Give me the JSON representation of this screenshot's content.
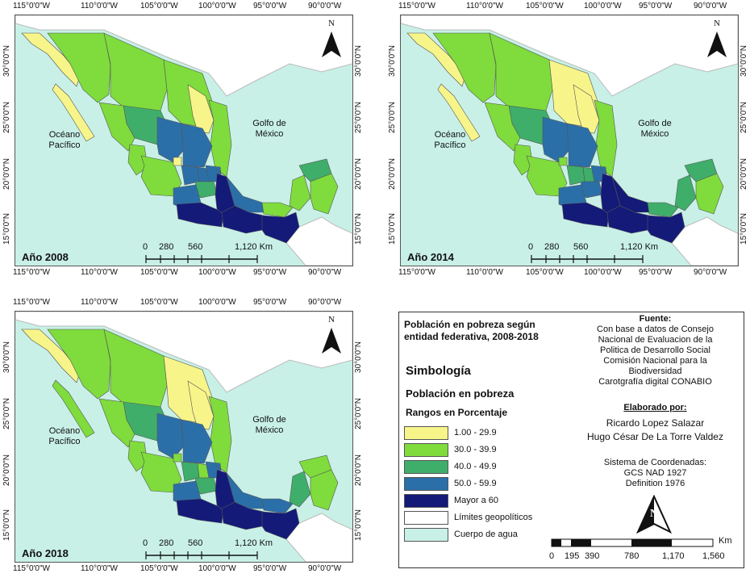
{
  "maps": [
    {
      "year": "Año 2008",
      "pacific": [
        "Océano",
        "Pacífico"
      ],
      "gulf": [
        "Golfo de",
        "México"
      ],
      "scale": [
        "0",
        "280",
        "560",
        "1,120 Km"
      ],
      "north": "N",
      "lon_ticks": [
        "115°0'0\"W",
        "110°0'0\"W",
        "105°0'0\"W",
        "100°0'0\"W",
        "95°0'0\"W",
        "90°0'0\"W"
      ],
      "lat_ticks": [
        "30°0'0\"N",
        "25°0'0\"N",
        "20°0'0\"N",
        "15°0'0\"N"
      ],
      "region_classes": [
        "1.00 - 29.9",
        "30.0 - 39.9",
        "40.0 - 49.9",
        "50.0 - 59.9",
        "Mayor a 60"
      ]
    },
    {
      "year": "Año 2014",
      "pacific": [
        "Océano",
        "Pacífico"
      ],
      "gulf": [
        "Golfo de",
        "México"
      ],
      "scale": [
        "0",
        "280",
        "560",
        "1,120 Km"
      ],
      "north": "N",
      "lon_ticks": [
        "115°0'0\"W",
        "110°0'0\"W",
        "105°0'0\"W",
        "100°0'0\"W",
        "95°0'0\"W",
        "90°0'0\"W"
      ],
      "lat_ticks": [
        "30°0'0\"N",
        "25°0'0\"N",
        "20°0'0\"N",
        "15°0'0\"N"
      ]
    },
    {
      "year": "Año 2018",
      "pacific": [
        "Océano",
        "Pacífico"
      ],
      "gulf": [
        "Golfo de",
        "México"
      ],
      "scale": [
        "0",
        "280",
        "560",
        "1,120 Km"
      ],
      "north": "N",
      "lon_ticks": [
        "115°0'0\"W",
        "110°0'0\"W",
        "105°0'0\"W",
        "100°0'0\"W",
        "95°0'0\"W",
        "90°0'0\"W"
      ],
      "lat_ticks": [
        "30°0'0\"N",
        "25°0'0\"N",
        "20°0'0\"N",
        "15°0'0\"N"
      ]
    }
  ],
  "legend": {
    "title": [
      "Población en pobreza según",
      "entidad federativa, 2008-2018"
    ],
    "simbologia": "Simbología",
    "subtitle": "Población en pobreza",
    "ranges_title": "Rangos en Porcentaje",
    "classes": [
      {
        "label": "1.00 - 29.9",
        "color": "#f7f58a"
      },
      {
        "label": "30.0 - 39.9",
        "color": "#7fdc3c"
      },
      {
        "label": "40.0 - 49.9",
        "color": "#3fae6a"
      },
      {
        "label": "50.0 - 59.9",
        "color": "#2b6fa8"
      },
      {
        "label": "Mayor a 60",
        "color": "#141a78"
      },
      {
        "label": "Límites geopolíticos",
        "color": "#ffffff"
      },
      {
        "label": "Cuerpo de agua",
        "color": "#c8f0e6"
      }
    ],
    "fuente_title": "Fuente:",
    "fuente": [
      "Con base a datos de Consejo",
      "Nacional de Evaluacion de la",
      "Politica de Desarrollo Social",
      "Comisión Nacional para la",
      "Biodiversidad",
      "Carotgrafía digital CONABIO"
    ],
    "elaborado_title": "Elaborado por:",
    "authors": [
      "Ricardo Lopez Salazar",
      "Hugo César De La Torre Valdez"
    ],
    "coords": [
      "Sistema de Coordenadas:",
      "GCS NAD 1927",
      "Definition 1976"
    ],
    "north": "N",
    "scale_unit": "Km",
    "scale_ticks": [
      "0",
      "195",
      "390",
      "780",
      "1,170",
      "1,560"
    ]
  }
}
